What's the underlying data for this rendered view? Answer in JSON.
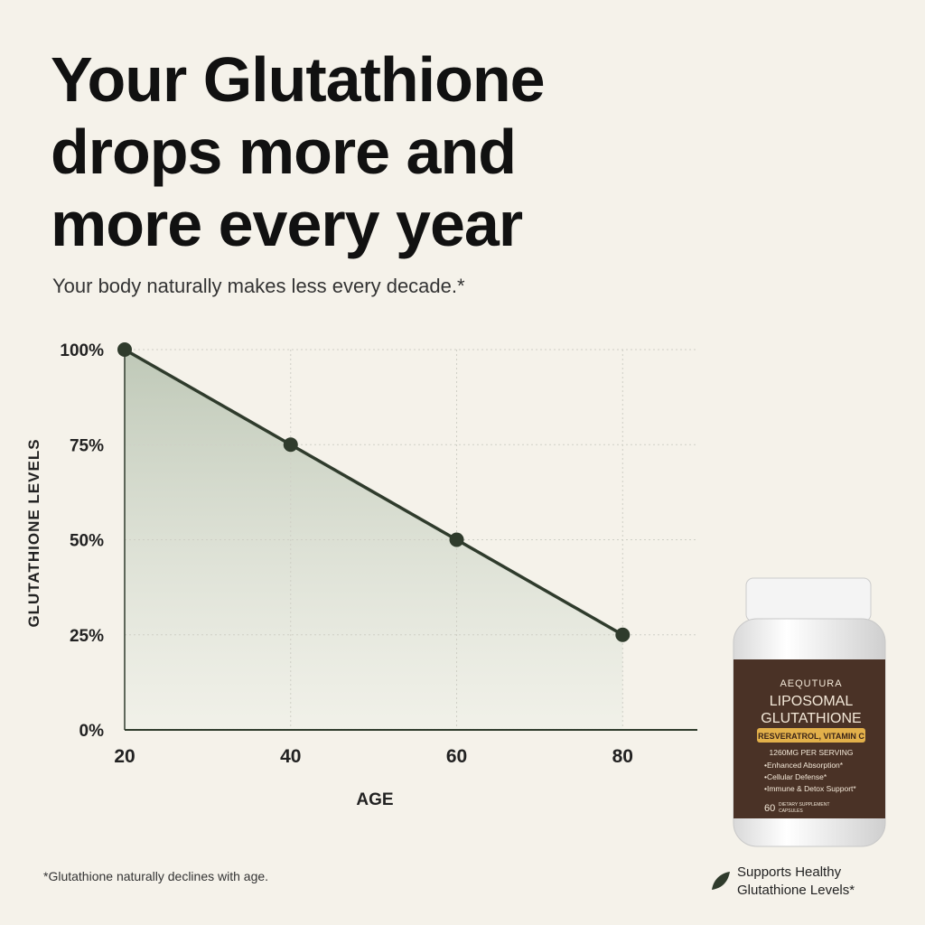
{
  "chart_data": {
    "type": "line",
    "title": [
      "Your Glutathione",
      "drops more and",
      "more every year"
    ],
    "subtitle": "Your body naturally makes less every decade.*",
    "x_label": "AGE",
    "y_label": "GLUTATHIONE LEVELS",
    "x": [
      20,
      40,
      60,
      80
    ],
    "series": [
      {
        "color": "#2f3b2c",
        "values": [
          100,
          75,
          50,
          25
        ]
      }
    ],
    "xlim": [
      20,
      89
    ],
    "ylim": [
      0,
      100
    ],
    "xticks": [
      20,
      40,
      60,
      80
    ],
    "yticks": [
      {
        "value": 0,
        "label": "0%"
      },
      {
        "value": 25,
        "label": "25%"
      },
      {
        "value": 50,
        "label": "50%"
      },
      {
        "value": 75,
        "label": "75%"
      },
      {
        "value": 100,
        "label": "100%"
      }
    ],
    "grid": true,
    "footnote": "*Glutathione naturally declines with age."
  },
  "product": {
    "brand": "AEQUTURA",
    "name": [
      "LIPOSOMAL",
      "GLUTATHIONE"
    ],
    "with": "RESVERATROL, VITAMIN C",
    "serving": "1260MG PER SERVING",
    "benefits": [
      "•Enhanced Absorption*",
      "•Cellular Defense*",
      "•Immune & Detox Support*"
    ],
    "count": "60",
    "count_text": [
      "DIETARY SUPPLEMENT",
      "CAPSULES"
    ],
    "caption": [
      "Supports Healthy",
      "Glutathione Levels*"
    ]
  }
}
